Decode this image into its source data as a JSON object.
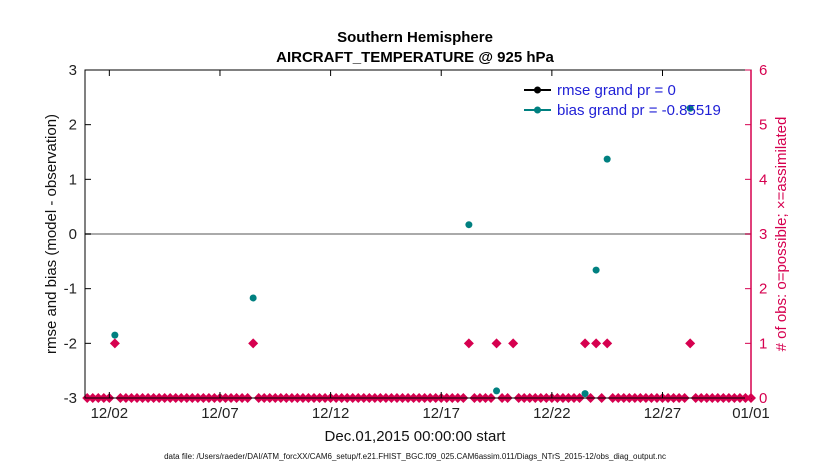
{
  "chart_data": {
    "type": "scatter",
    "title": "Southern Hemisphere",
    "subtitle": "AIRCRAFT_TEMPERATURE @ 925 hPa",
    "xlabel": "Dec.01,2015 00:00:00 start",
    "ylabel": "rmse and bias (model - observation)",
    "ylabel_right": "# of obs: o=possible; ×=assimilated",
    "xlim": [
      0.9,
      31.0
    ],
    "ylim": [
      -3,
      3
    ],
    "ylim_right": [
      0,
      6
    ],
    "x_tick_values": [
      2,
      7,
      12,
      17,
      22,
      27,
      31
    ],
    "x_tick_labels": [
      "12/02",
      "12/07",
      "12/12",
      "12/17",
      "12/22",
      "12/27",
      "01/01"
    ],
    "y_ticks": [
      -3,
      -2,
      -1,
      0,
      1,
      2,
      3
    ],
    "y_ticks_right": [
      0,
      1,
      2,
      3,
      4,
      5,
      6
    ],
    "zero_line": 0,
    "legend_placement": "top-right",
    "colors": {
      "rmse": "#000000",
      "bias": "#008080",
      "obs": "#d6004f",
      "legend_text": "#1f1fd6",
      "zero_line": "#aaaaaa"
    },
    "series": [
      {
        "name": "rmse grand pr = 0",
        "axis": "left",
        "x": [],
        "values": []
      },
      {
        "name": "bias grand pr = -0.85519",
        "axis": "left",
        "x": [
          2.25,
          8.5,
          18.25,
          19.5,
          23.5,
          24,
          24.5,
          28.25
        ],
        "values": [
          -1.85,
          -1.17,
          0.17,
          -2.87,
          -2.92,
          -0.66,
          1.37,
          2.3
        ]
      },
      {
        "axis": "right",
        "x": [
          2.25,
          8.5,
          18.25,
          19.5,
          20.25,
          23.5,
          24,
          24.5,
          28.25
        ],
        "values": [
          1,
          1,
          1,
          1,
          1,
          1,
          1,
          1,
          1
        ]
      }
    ]
  },
  "footer": "data file: /Users/raeder/DAI/ATM_forcXX/CAM6_setup/f.e21.FHIST_BGC.f09_025.CAM6assim.011/Diags_NTrS_2015-12/obs_diag_output.nc"
}
